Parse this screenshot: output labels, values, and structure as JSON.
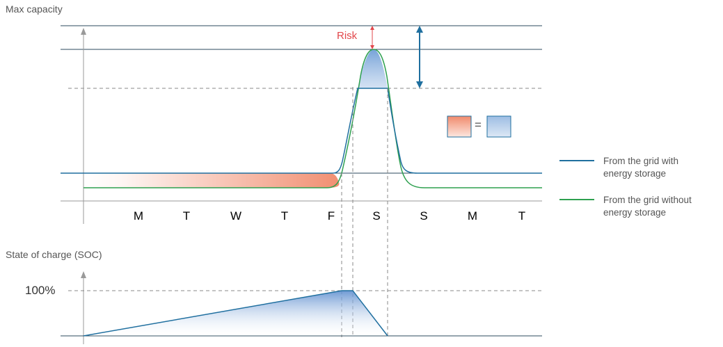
{
  "top_chart": {
    "title": "Max capacity",
    "days": [
      "M",
      "T",
      "W",
      "T",
      "F",
      "S",
      "S",
      "M",
      "T"
    ],
    "risk_label": "Risk",
    "equals": "="
  },
  "legend": {
    "items": [
      {
        "label_line1": "From the grid with",
        "label_line2": "energy storage",
        "color": "#1f6f9f"
      },
      {
        "label_line1": "From the grid without",
        "label_line2": "energy storage",
        "color": "#2ea04f"
      }
    ]
  },
  "bottom_chart": {
    "title": "State of charge (SOC)",
    "max_label": "100%"
  },
  "colors": {
    "axis": "#9a9a9a",
    "grid_line": "#2b4a5c",
    "with_storage": "#1f6f9f",
    "without_storage": "#2ea04f",
    "risk": "#e2474b",
    "fill_blue": "#8fb4dd",
    "fill_orange": "#f0896a"
  }
}
